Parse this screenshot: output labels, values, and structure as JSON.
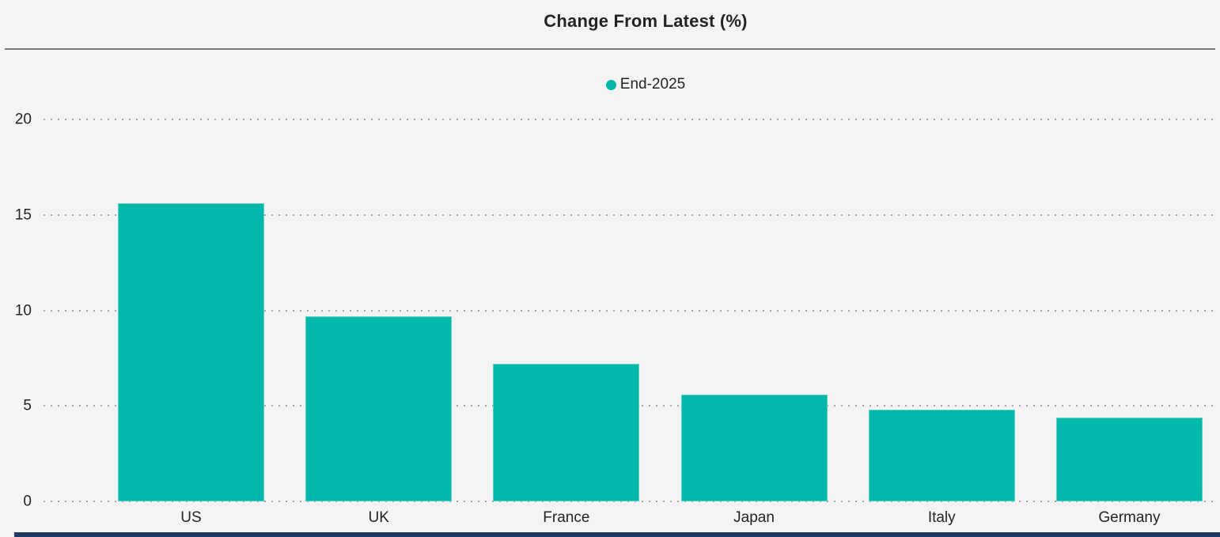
{
  "header": {
    "title": "Change From Latest (%)"
  },
  "legend": {
    "label": "End-2025"
  },
  "chart_data": {
    "type": "bar",
    "title": "Change From Latest (%)",
    "series": [
      {
        "name": "End-2025",
        "values": [
          15.6,
          9.7,
          7.2,
          5.6,
          4.8,
          4.4
        ]
      }
    ],
    "categories": [
      "US",
      "UK",
      "France",
      "Japan",
      "Italy",
      "Germany"
    ],
    "xlabel": "",
    "ylabel": "",
    "ylim": [
      0,
      20
    ],
    "yticks": [
      0,
      5,
      10,
      15,
      20
    ],
    "grid": "horizontal-dotted",
    "legend_position": "top-center",
    "bar_color": "#01B8AA"
  },
  "colors": {
    "bar": "#01B8AA",
    "background": "#F4F4F4",
    "text": "#252423",
    "gridline": "#A6A6A6",
    "divider": "#7A7A7A",
    "bottom_strip": "#1F3864"
  }
}
